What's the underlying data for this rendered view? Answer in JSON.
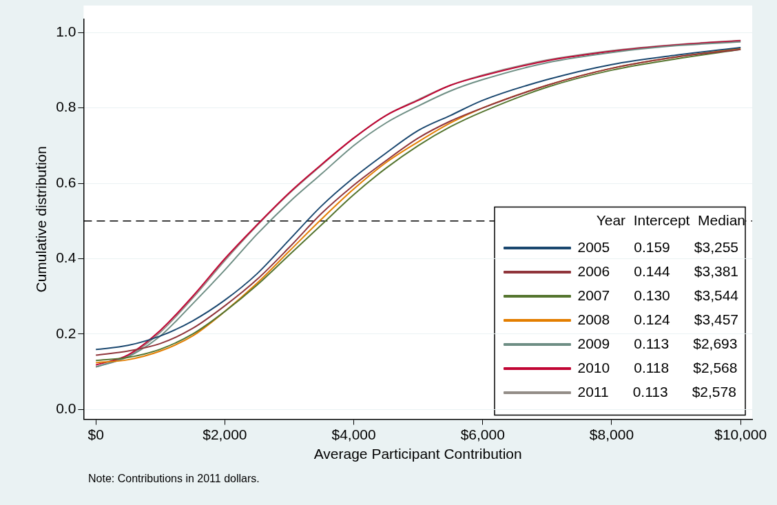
{
  "chart_data": {
    "type": "line",
    "xlabel": "Average Participant Contribution",
    "ylabel": "Cumulative distribution",
    "legend_title": "Year  Intercept  Median",
    "legend": "bottom right",
    "grid": "y",
    "marker": "none",
    "line_style": "solid",
    "xlim": [
      -190,
      10180
    ],
    "ylim": [
      -0.026,
      1.035
    ],
    "xticks": [
      {
        "value": 0,
        "label": "$0"
      },
      {
        "value": 2000,
        "label": "$2,000"
      },
      {
        "value": 4000,
        "label": "$4,000"
      },
      {
        "value": 6000,
        "label": "$6,000"
      },
      {
        "value": 8000,
        "label": "$8,000"
      },
      {
        "value": 10000,
        "label": "$10,000"
      }
    ],
    "yticks": [
      {
        "value": 0,
        "label": "0.0"
      },
      {
        "value": 0.2,
        "label": "0.2"
      },
      {
        "value": 0.4,
        "label": "0.4"
      },
      {
        "value": 0.6,
        "label": "0.6"
      },
      {
        "value": 0.8,
        "label": "0.8"
      },
      {
        "value": 1,
        "label": "1.0"
      }
    ],
    "x": [
      0,
      500,
      1000,
      1500,
      2000,
      2500,
      3000,
      3500,
      4000,
      4500,
      5000,
      5500,
      6000,
      7000,
      8000,
      9000,
      10000
    ],
    "series": [
      {
        "name": "2005      0.159      $3,255",
        "color": "#1a476f",
        "values": [
          0.159,
          0.17,
          0.195,
          0.235,
          0.29,
          0.36,
          0.45,
          0.54,
          0.615,
          0.68,
          0.74,
          0.78,
          0.82,
          0.875,
          0.915,
          0.94,
          0.96
        ]
      },
      {
        "name": "2006      0.144      $3,381",
        "color": "#90353b",
        "values": [
          0.144,
          0.155,
          0.175,
          0.215,
          0.275,
          0.345,
          0.43,
          0.52,
          0.595,
          0.66,
          0.72,
          0.765,
          0.8,
          0.86,
          0.905,
          0.935,
          0.955
        ]
      },
      {
        "name": "2007      0.130      $3,544",
        "color": "#55752f",
        "values": [
          0.13,
          0.138,
          0.16,
          0.2,
          0.26,
          0.33,
          0.41,
          0.49,
          0.57,
          0.64,
          0.7,
          0.75,
          0.79,
          0.855,
          0.9,
          0.93,
          0.955
        ]
      },
      {
        "name": "2008      0.124      $3,457",
        "color": "#e37e00",
        "values": [
          0.124,
          0.132,
          0.155,
          0.195,
          0.26,
          0.335,
          0.42,
          0.505,
          0.585,
          0.655,
          0.71,
          0.76,
          0.8,
          0.86,
          0.905,
          0.935,
          0.958
        ]
      },
      {
        "name": "2009      0.113      $2,693",
        "color": "#6e8e84",
        "values": [
          0.113,
          0.14,
          0.195,
          0.28,
          0.37,
          0.465,
          0.55,
          0.625,
          0.7,
          0.76,
          0.805,
          0.845,
          0.875,
          0.92,
          0.947,
          0.965,
          0.975
        ]
      },
      {
        "name": "2010      0.118      $2,568",
        "color": "#c10534",
        "values": [
          0.118,
          0.145,
          0.21,
          0.3,
          0.4,
          0.49,
          0.575,
          0.65,
          0.72,
          0.78,
          0.82,
          0.86,
          0.885,
          0.925,
          0.95,
          0.967,
          0.978
        ]
      },
      {
        "name": "2011      0.113      $2,578",
        "color": "#938d87",
        "values": [
          0.113,
          0.142,
          0.205,
          0.295,
          0.395,
          0.488,
          0.573,
          0.648,
          0.72,
          0.78,
          0.822,
          0.86,
          0.887,
          0.927,
          0.952,
          0.968,
          0.979
        ]
      }
    ],
    "ref_lines": [
      {
        "axis": "y",
        "value": 0.5,
        "color": "#000000",
        "line_style": "dashed"
      }
    ],
    "annotations": [
      "Note: Contributions in 2011 dollars."
    ]
  }
}
